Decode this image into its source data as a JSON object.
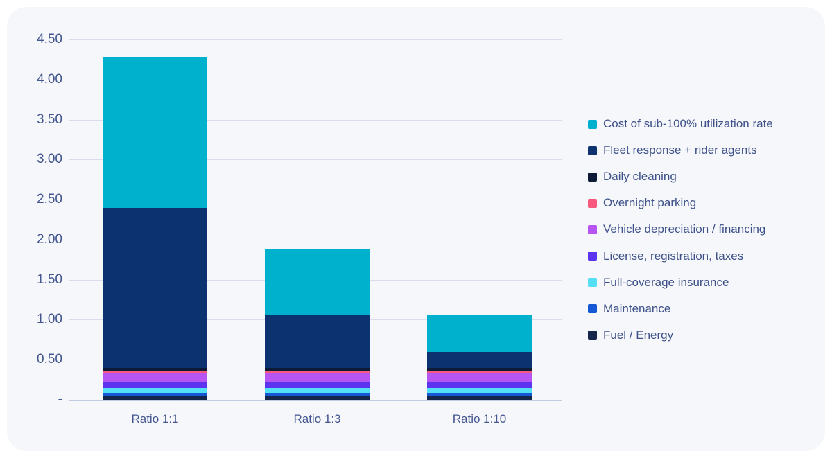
{
  "panel": {
    "background": "#f5f7fb",
    "outer_background": "#ffffff"
  },
  "axis": {
    "grid_color": "#d8ddeb",
    "baseline_color": "#c5cde2",
    "label_color": "#44568f"
  },
  "chart_data": {
    "type": "bar",
    "stacked": true,
    "title": "",
    "xlabel": "",
    "ylabel": "",
    "grid": true,
    "legend_position": "right",
    "ylim": [
      0,
      4.5
    ],
    "ytick_values": [
      4.5,
      4.0,
      3.5,
      3.0,
      2.5,
      2.0,
      1.5,
      1.0,
      0.5,
      0
    ],
    "yticklabels": [
      "4.50",
      "4.00",
      "3.50",
      "3.00",
      "2.50",
      "2.00",
      "1.50",
      "1.00",
      "0.50",
      "-"
    ],
    "categories": [
      "Ratio 1:1",
      "Ratio 1:3",
      "Ratio 1:10"
    ],
    "series": [
      {
        "name": "Fuel / Energy",
        "color": "#16264a",
        "values": [
          0.05,
          0.05,
          0.05
        ]
      },
      {
        "name": "Maintenance",
        "color": "#1657d6",
        "values": [
          0.035,
          0.035,
          0.035
        ]
      },
      {
        "name": "Full-coverage insurance",
        "color": "#55dff5",
        "values": [
          0.06,
          0.06,
          0.06
        ]
      },
      {
        "name": "License, registration, taxes",
        "color": "#5c33ee",
        "values": [
          0.07,
          0.07,
          0.07
        ]
      },
      {
        "name": "Vehicle depreciation / financing",
        "color": "#b655f2",
        "values": [
          0.11,
          0.11,
          0.11
        ]
      },
      {
        "name": "Overnight parking",
        "color": "#f9587e",
        "values": [
          0.035,
          0.035,
          0.035
        ]
      },
      {
        "name": "Daily cleaning",
        "color": "#0d1b38",
        "values": [
          0.04,
          0.04,
          0.04
        ]
      },
      {
        "name": "Fleet response + rider agents",
        "color": "#0c336f",
        "values": [
          2.0,
          0.66,
          0.2
        ]
      },
      {
        "name": "Cost of sub-100% utilization rate",
        "color": "#00b1cd",
        "values": [
          1.88,
          0.83,
          0.46
        ]
      }
    ],
    "totals": [
      4.28,
      1.89,
      1.06
    ]
  }
}
